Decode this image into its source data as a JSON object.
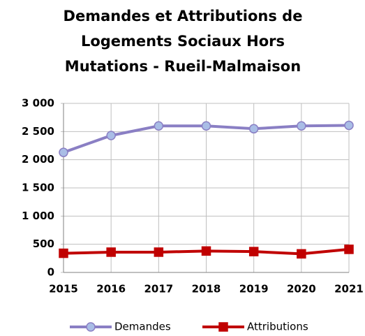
{
  "chart_data": {
    "type": "line",
    "title": [
      "Demandes et Attributions de",
      "Logements Sociaux Hors",
      "Mutations - Rueil-Malmaison"
    ],
    "categories": [
      "2015",
      "2016",
      "2017",
      "2018",
      "2019",
      "2020",
      "2021"
    ],
    "series": [
      {
        "name": "Demandes",
        "color": "#8a7fc4",
        "marker_color": "#a9bde6",
        "marker": "circle",
        "values": [
          2130,
          2430,
          2600,
          2600,
          2550,
          2600,
          2610
        ]
      },
      {
        "name": "Attributions",
        "color": "#c00000",
        "marker_color": "#c00000",
        "marker": "square",
        "values": [
          340,
          360,
          360,
          380,
          370,
          330,
          410
        ]
      }
    ],
    "ylim": [
      0,
      3000
    ],
    "yticks": [
      0,
      500,
      {
        "value": 1000,
        "label": "1 000"
      },
      {
        "value": 1500,
        "label": "1 500"
      },
      {
        "value": 2000,
        "label": "2 000"
      },
      {
        "value": 2500,
        "label": "2 500"
      },
      {
        "value": 3000,
        "label": "3 000"
      }
    ],
    "grid": true,
    "legend": "bottom"
  }
}
